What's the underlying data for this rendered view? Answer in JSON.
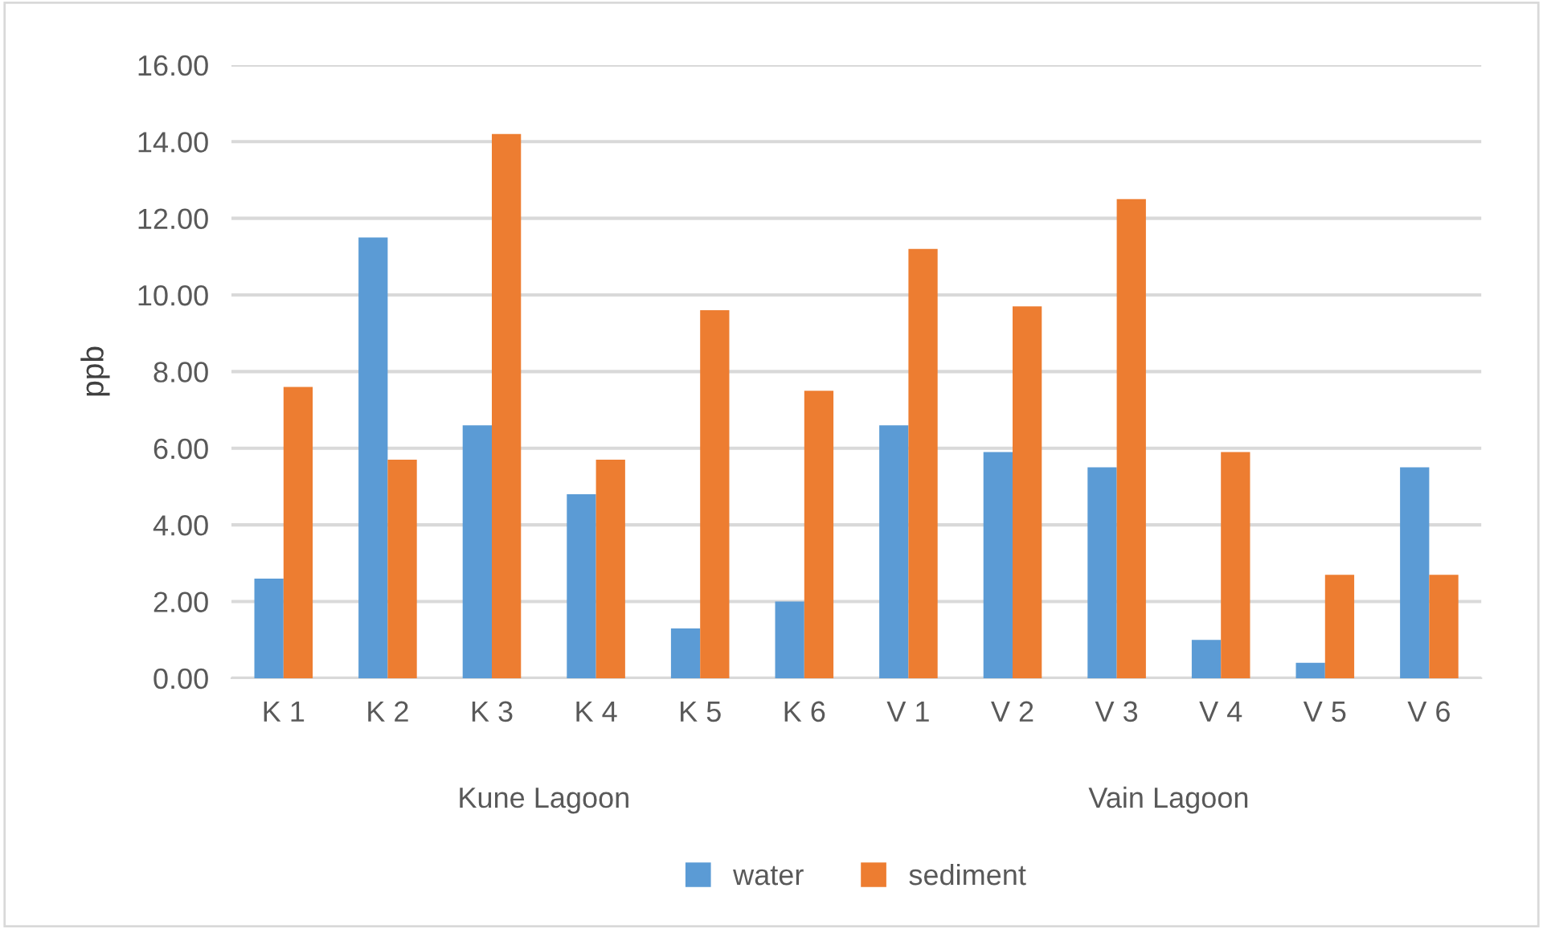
{
  "chart_data": {
    "type": "bar",
    "ylabel": "ppb",
    "categories": [
      "K 1",
      "K 2",
      "K 3",
      "K 4",
      "K 5",
      "K 6",
      "V 1",
      "V 2",
      "V 3",
      "V 4",
      "V 5",
      "V 6"
    ],
    "series": [
      {
        "name": "water",
        "color": "#5b9bd5",
        "values": [
          2.6,
          11.5,
          6.6,
          4.8,
          1.3,
          2.0,
          6.6,
          5.9,
          5.5,
          1.0,
          0.4,
          5.5
        ]
      },
      {
        "name": "sediment",
        "color": "#ed7d31",
        "values": [
          7.6,
          5.7,
          14.2,
          5.7,
          9.6,
          7.5,
          11.2,
          9.7,
          12.5,
          5.9,
          2.7,
          2.7
        ]
      }
    ],
    "annotations": [
      "Kune Lagoon",
      "Vain Lagoon"
    ],
    "ylim": [
      0,
      16
    ],
    "yticks": [
      {
        "value": 0,
        "label": "0.00"
      },
      {
        "value": 2,
        "label": "2.00"
      },
      {
        "value": 4,
        "label": "4.00"
      },
      {
        "value": 6,
        "label": "6.00"
      },
      {
        "value": 8,
        "label": "8.00"
      },
      {
        "value": 10,
        "label": "10.00"
      },
      {
        "value": 12,
        "label": "12.00"
      },
      {
        "value": 14,
        "label": "14.00"
      },
      {
        "value": 16,
        "label": "16.00"
      }
    ],
    "grid": "y",
    "legend": "bottom"
  }
}
